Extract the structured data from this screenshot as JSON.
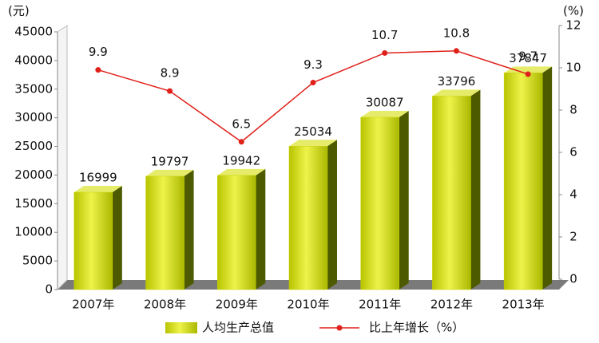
{
  "chart_data": {
    "type": "bar",
    "y_label": "(元)",
    "y2_label": "(%)",
    "categories": [
      "2007年",
      "2008年",
      "2009年",
      "2010年",
      "2011年",
      "2012年",
      "2013年"
    ],
    "series": [
      {
        "name": "人均生产总值",
        "type": "bar",
        "color": "#c9d400",
        "values": [
          16999,
          19797,
          19942,
          25034,
          30087,
          33796,
          37847
        ]
      },
      {
        "name": "比上年增长（%）",
        "type": "line",
        "axis": "y2",
        "color": "#e0201a",
        "values": [
          9.9,
          8.9,
          6.5,
          9.3,
          10.7,
          10.8,
          9.7
        ]
      }
    ],
    "ylim": [
      0,
      45000
    ],
    "yticks": [
      0,
      5000,
      10000,
      15000,
      20000,
      25000,
      30000,
      35000,
      40000,
      45000
    ],
    "y2lim": [
      0,
      12
    ],
    "y2ticks": [
      0,
      2,
      4,
      6,
      8,
      10,
      12
    ],
    "legend": "bottom"
  }
}
